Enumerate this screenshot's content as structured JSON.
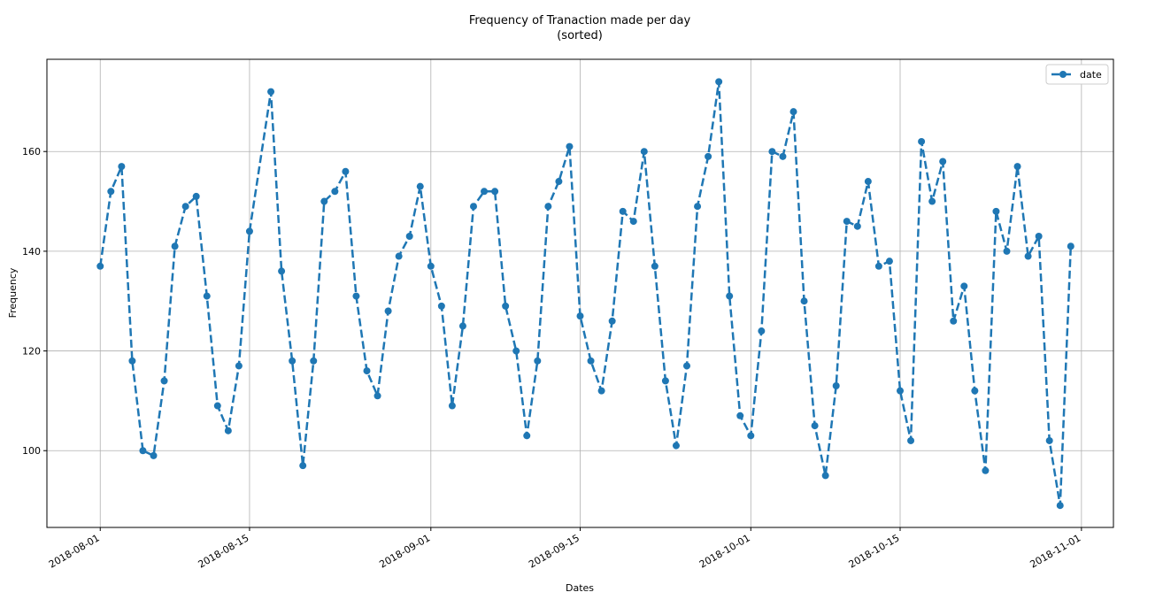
{
  "chart_data": {
    "type": "line",
    "title": "Frequency of Tranaction made per day",
    "subtitle": "(sorted)",
    "x_label": "Dates",
    "y_label": "Frequency",
    "x": [
      "2018-08-01",
      "2018-08-02",
      "2018-08-03",
      "2018-08-04",
      "2018-08-05",
      "2018-08-06",
      "2018-08-07",
      "2018-08-08",
      "2018-08-09",
      "2018-08-10",
      "2018-08-11",
      "2018-08-12",
      "2018-08-13",
      "2018-08-14",
      "2018-08-15",
      "2018-08-17",
      "2018-08-18",
      "2018-08-19",
      "2018-08-20",
      "2018-08-21",
      "2018-08-22",
      "2018-08-23",
      "2018-08-24",
      "2018-08-25",
      "2018-08-26",
      "2018-08-27",
      "2018-08-28",
      "2018-08-29",
      "2018-08-30",
      "2018-08-31",
      "2018-09-01",
      "2018-09-02",
      "2018-09-03",
      "2018-09-04",
      "2018-09-05",
      "2018-09-06",
      "2018-09-07",
      "2018-09-08",
      "2018-09-09",
      "2018-09-10",
      "2018-09-11",
      "2018-09-12",
      "2018-09-13",
      "2018-09-14",
      "2018-09-15",
      "2018-09-16",
      "2018-09-17",
      "2018-09-18",
      "2018-09-19",
      "2018-09-20",
      "2018-09-21",
      "2018-09-22",
      "2018-09-23",
      "2018-09-24",
      "2018-09-25",
      "2018-09-26",
      "2018-09-27",
      "2018-09-28",
      "2018-09-29",
      "2018-09-30",
      "2018-10-01",
      "2018-10-02",
      "2018-10-03",
      "2018-10-04",
      "2018-10-05",
      "2018-10-06",
      "2018-10-07",
      "2018-10-08",
      "2018-10-09",
      "2018-10-10",
      "2018-10-11",
      "2018-10-12",
      "2018-10-13",
      "2018-10-14",
      "2018-10-15",
      "2018-10-16",
      "2018-10-17",
      "2018-10-18",
      "2018-10-19",
      "2018-10-20",
      "2018-10-21",
      "2018-10-22",
      "2018-10-23",
      "2018-10-24",
      "2018-10-25",
      "2018-10-26",
      "2018-10-27",
      "2018-10-28",
      "2018-10-29",
      "2018-10-30",
      "2018-10-31"
    ],
    "series": [
      {
        "name": "date",
        "color": "#1f77b4",
        "values": [
          137,
          152,
          157,
          118,
          100,
          99,
          114,
          141,
          149,
          151,
          131,
          109,
          104,
          117,
          144,
          172,
          136,
          118,
          97,
          118,
          150,
          152,
          156,
          131,
          116,
          111,
          128,
          139,
          143,
          153,
          137,
          129,
          109,
          125,
          149,
          152,
          152,
          129,
          120,
          103,
          118,
          149,
          154,
          161,
          127,
          118,
          112,
          126,
          148,
          146,
          160,
          137,
          114,
          101,
          117,
          149,
          159,
          174,
          131,
          107,
          103,
          124,
          160,
          159,
          168,
          130,
          105,
          95,
          113,
          146,
          145,
          154,
          137,
          138,
          112,
          102,
          162,
          150,
          158,
          126,
          133,
          112,
          96,
          148,
          140,
          157,
          139,
          143,
          102,
          89,
          141
        ]
      }
    ],
    "xlim": [
      "2018-07-27",
      "2018-11-04"
    ],
    "xticks": [
      "2018-08-01",
      "2018-08-15",
      "2018-09-01",
      "2018-09-15",
      "2018-10-01",
      "2018-10-15",
      "2018-11-01"
    ],
    "ylim": [
      84.6,
      178.5
    ],
    "yticks": [
      100,
      120,
      140,
      160
    ],
    "grid": true,
    "legend": "upper right"
  }
}
